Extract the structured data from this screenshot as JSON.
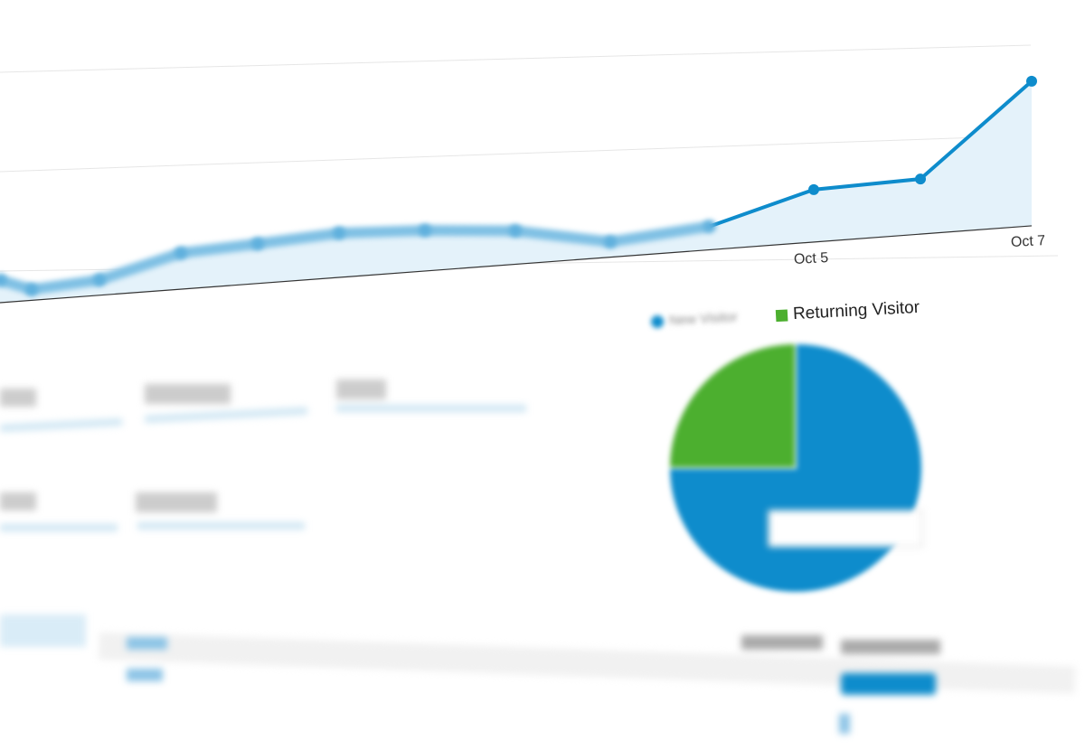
{
  "chart_data": [
    {
      "type": "area",
      "x_tick_labels": [
        "Oct 5",
        "Oct 7"
      ],
      "values": [
        25,
        12,
        17,
        40,
        44,
        49,
        45,
        37,
        17,
        26,
        58,
        61,
        160
      ],
      "grid": true,
      "color": "#0e8ccc",
      "fill": "#e4f2fa"
    },
    {
      "type": "pie",
      "legend": [
        {
          "label": "New Visitor",
          "color": "#0e8ccc"
        },
        {
          "label": "Returning Visitor",
          "color": "#4caf2f"
        }
      ],
      "values": [
        75,
        25
      ],
      "legend_placement": "top"
    }
  ],
  "colors": {
    "accent": "#0e8ccc",
    "green": "#4caf2f"
  }
}
